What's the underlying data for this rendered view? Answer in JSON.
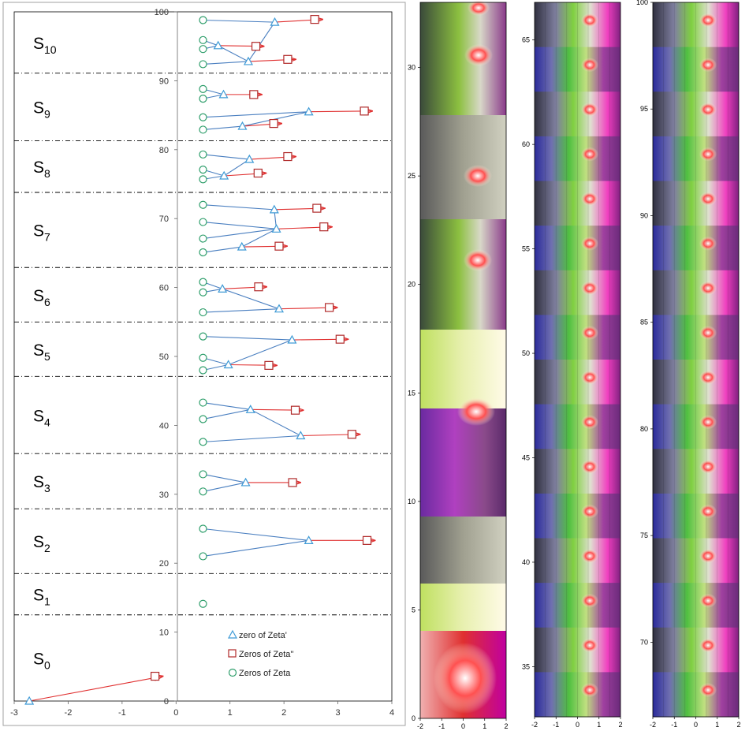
{
  "chart_data": [
    {
      "type": "scatter",
      "xlim": [
        -3,
        4
      ],
      "ylim": [
        0,
        100
      ],
      "x_ticks": [
        -3,
        -2,
        -1,
        0,
        1,
        2,
        3,
        4
      ],
      "y_ticks": [
        0,
        10,
        20,
        30,
        40,
        50,
        60,
        70,
        80,
        90,
        100
      ],
      "grid": false,
      "legend_position": "bottom-center",
      "legend": [
        "zero of Zeta'",
        "Zeros of Zeta''",
        "Zeros of Zeta"
      ],
      "colors": {
        "zeta": "#2e9e6b",
        "zeta1": "#3e9ad6",
        "zeta2": "#b02a2a",
        "arrow": "#e03030",
        "path": "#4a7fc0"
      },
      "regions": [
        {
          "sub": "0",
          "y_low": 0,
          "y_high": 12.5
        },
        {
          "sub": "1",
          "y_low": 12.5,
          "y_high": 18.5
        },
        {
          "sub": "2",
          "y_low": 18.5,
          "y_high": 27.9
        },
        {
          "sub": "3",
          "y_low": 27.9,
          "y_high": 35.9
        },
        {
          "sub": "4",
          "y_low": 35.9,
          "y_high": 47.1
        },
        {
          "sub": "5",
          "y_low": 47.1,
          "y_high": 55.0
        },
        {
          "sub": "6",
          "y_low": 55.0,
          "y_high": 62.9
        },
        {
          "sub": "7",
          "y_low": 62.9,
          "y_high": 73.8
        },
        {
          "sub": "8",
          "y_low": 73.8,
          "y_high": 81.3
        },
        {
          "sub": "9",
          "y_low": 81.3,
          "y_high": 91.1
        },
        {
          "sub": "10",
          "y_low": 91.1,
          "y_high": 100
        }
      ],
      "region_letter": "S",
      "zeros_zeta": [
        [
          0.5,
          14.1
        ],
        [
          0.5,
          21.0
        ],
        [
          0.5,
          25.0
        ],
        [
          0.5,
          30.4
        ],
        [
          0.5,
          32.9
        ],
        [
          0.5,
          37.6
        ],
        [
          0.5,
          40.9
        ],
        [
          0.5,
          43.3
        ],
        [
          0.5,
          48.0
        ],
        [
          0.5,
          49.8
        ],
        [
          0.5,
          52.9
        ],
        [
          0.5,
          56.4
        ],
        [
          0.5,
          59.3
        ],
        [
          0.5,
          60.8
        ],
        [
          0.5,
          65.1
        ],
        [
          0.5,
          67.1
        ],
        [
          0.5,
          69.5
        ],
        [
          0.5,
          72.0
        ],
        [
          0.5,
          75.7
        ],
        [
          0.5,
          77.1
        ],
        [
          0.5,
          79.3
        ],
        [
          0.5,
          82.9
        ],
        [
          0.5,
          84.7
        ],
        [
          0.5,
          87.4
        ],
        [
          0.5,
          88.8
        ],
        [
          0.5,
          92.4
        ],
        [
          0.5,
          94.6
        ],
        [
          0.5,
          95.9
        ],
        [
          0.5,
          98.8
        ]
      ],
      "zeros_zeta1": [
        [
          -2.72,
          0
        ],
        [
          2.46,
          23.3
        ],
        [
          1.29,
          31.7
        ],
        [
          2.31,
          38.5
        ],
        [
          1.38,
          42.3
        ],
        [
          0.97,
          48.8
        ],
        [
          2.15,
          52.4
        ],
        [
          1.91,
          56.9
        ],
        [
          0.86,
          59.8
        ],
        [
          1.22,
          65.9
        ],
        [
          1.86,
          68.5
        ],
        [
          1.82,
          71.3
        ],
        [
          0.89,
          76.2
        ],
        [
          1.36,
          78.6
        ],
        [
          1.23,
          83.4
        ],
        [
          2.46,
          85.5
        ],
        [
          0.88,
          88.0
        ],
        [
          1.34,
          92.8
        ],
        [
          0.78,
          95.1
        ],
        [
          1.83,
          98.5
        ]
      ],
      "zeros_zeta2": [
        [
          -0.39,
          3.6
        ],
        [
          3.54,
          23.3
        ],
        [
          2.16,
          31.7
        ],
        [
          3.26,
          38.7
        ],
        [
          2.21,
          42.2
        ],
        [
          1.72,
          48.7
        ],
        [
          3.04,
          52.5
        ],
        [
          2.84,
          57.1
        ],
        [
          1.53,
          60.1
        ],
        [
          1.91,
          66.0
        ],
        [
          2.74,
          68.8
        ],
        [
          2.61,
          71.5
        ],
        [
          1.52,
          76.6
        ],
        [
          2.07,
          79.0
        ],
        [
          1.81,
          83.8
        ],
        [
          3.49,
          85.6
        ],
        [
          1.44,
          88.0
        ],
        [
          2.07,
          93.1
        ],
        [
          1.48,
          95.0
        ],
        [
          2.57,
          98.9
        ]
      ],
      "paths": [
        [
          [
            0.5,
            21.0
          ],
          [
            2.46,
            23.3
          ],
          [
            0.5,
            25.0
          ]
        ],
        [
          [
            0.5,
            30.4
          ],
          [
            1.29,
            31.7
          ],
          [
            0.5,
            32.9
          ]
        ],
        [
          [
            0.5,
            37.6
          ],
          [
            2.31,
            38.5
          ],
          [
            1.38,
            42.3
          ],
          [
            0.5,
            40.9
          ]
        ],
        [
          [
            0.5,
            43.3
          ],
          [
            1.38,
            42.3
          ]
        ],
        [
          [
            0.5,
            48.0
          ],
          [
            0.97,
            48.8
          ],
          [
            0.5,
            49.8
          ]
        ],
        [
          [
            0.97,
            48.8
          ],
          [
            2.15,
            52.4
          ],
          [
            0.5,
            52.9
          ]
        ],
        [
          [
            0.5,
            56.4
          ],
          [
            1.91,
            56.9
          ],
          [
            0.86,
            59.8
          ],
          [
            0.5,
            59.3
          ]
        ],
        [
          [
            0.86,
            59.8
          ],
          [
            0.5,
            60.8
          ]
        ],
        [
          [
            0.5,
            65.1
          ],
          [
            1.22,
            65.9
          ],
          [
            1.86,
            68.5
          ],
          [
            0.5,
            67.1
          ]
        ],
        [
          [
            0.5,
            69.5
          ],
          [
            1.86,
            68.5
          ],
          [
            1.82,
            71.3
          ],
          [
            0.5,
            72.0
          ]
        ],
        [
          [
            0.5,
            75.7
          ],
          [
            0.89,
            76.2
          ],
          [
            0.5,
            77.1
          ]
        ],
        [
          [
            0.89,
            76.2
          ],
          [
            1.36,
            78.6
          ],
          [
            0.5,
            79.3
          ]
        ],
        [
          [
            0.5,
            82.9
          ],
          [
            1.23,
            83.4
          ],
          [
            2.46,
            85.5
          ],
          [
            0.5,
            84.7
          ]
        ],
        [
          [
            0.5,
            87.4
          ],
          [
            0.88,
            88.0
          ],
          [
            0.5,
            88.8
          ]
        ],
        [
          [
            0.5,
            92.4
          ],
          [
            1.34,
            92.8
          ],
          [
            0.78,
            95.1
          ],
          [
            0.5,
            94.6
          ]
        ],
        [
          [
            0.78,
            95.1
          ],
          [
            0.5,
            95.9
          ]
        ],
        [
          [
            1.34,
            92.8
          ],
          [
            1.83,
            98.5
          ],
          [
            0.5,
            98.8
          ]
        ]
      ]
    },
    {
      "type": "heatmap",
      "panel": "range-0-33",
      "xlim": [
        -2,
        2
      ],
      "ylim": [
        0,
        33
      ],
      "x_ticks": [
        -2,
        -1,
        0,
        1,
        2
      ],
      "y_ticks": [
        0,
        5,
        10,
        15,
        20,
        25,
        30
      ]
    },
    {
      "type": "heatmap",
      "panel": "range-32-66",
      "xlim": [
        -2,
        2
      ],
      "ylim": [
        32.6,
        66.8
      ],
      "x_ticks": [
        -2,
        -1,
        0,
        1,
        2
      ],
      "y_ticks": [
        35,
        40,
        45,
        50,
        55,
        60,
        65
      ]
    },
    {
      "type": "heatmap",
      "panel": "range-66-100",
      "xlim": [
        -2,
        2
      ],
      "ylim": [
        66.5,
        100
      ],
      "x_ticks": [
        -2,
        -1,
        0,
        1,
        2
      ],
      "y_ticks": [
        70,
        75,
        80,
        85,
        90,
        95,
        100
      ]
    }
  ]
}
